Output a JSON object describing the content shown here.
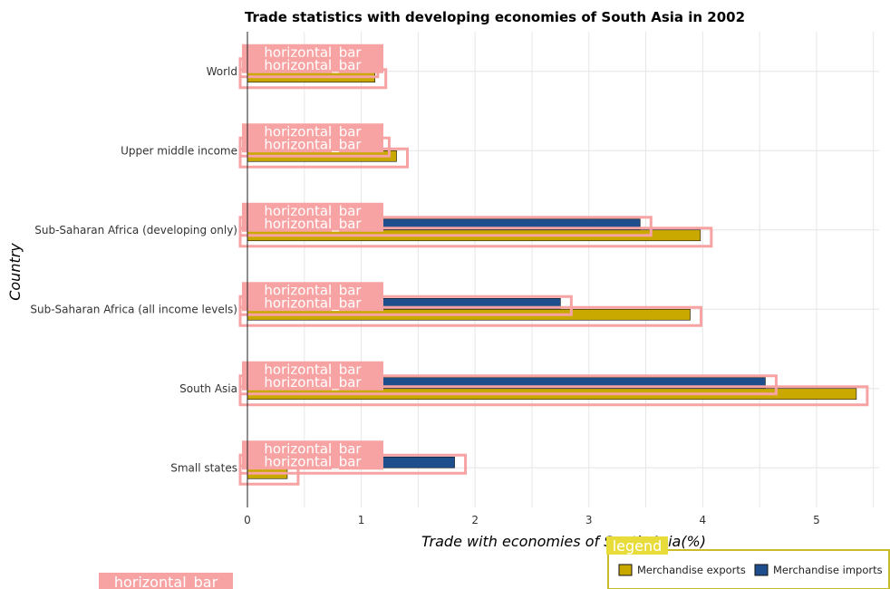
{
  "chart_data": {
    "type": "bar",
    "orientation": "horizontal",
    "title": "Trade statistics with developing economies of South Asia in 2002",
    "xlabel": "Trade with economies of South Asia(%)",
    "ylabel": "Country",
    "xlim": [
      0,
      5.55
    ],
    "x_ticks": [
      "0",
      "1",
      "2",
      "3",
      "4",
      "5"
    ],
    "grid": true,
    "legend_position": "bottom-right",
    "categories": [
      "Small states",
      "South Asia",
      "Sub-Saharan Africa (all income levels)",
      "Sub-Saharan Africa (developing only)",
      "Upper middle income",
      "World"
    ],
    "series": [
      {
        "name": "Merchandise exports",
        "color": "#c9a800",
        "values": [
          0.35,
          5.35,
          3.89,
          3.98,
          1.31,
          1.12
        ]
      },
      {
        "name": "Merchandise imports",
        "color": "#1f4e8c",
        "values": [
          1.82,
          4.55,
          2.75,
          3.45,
          1.15,
          1.05
        ]
      }
    ],
    "overlay_label": "horizontal_bar",
    "legend_title": "legend"
  }
}
